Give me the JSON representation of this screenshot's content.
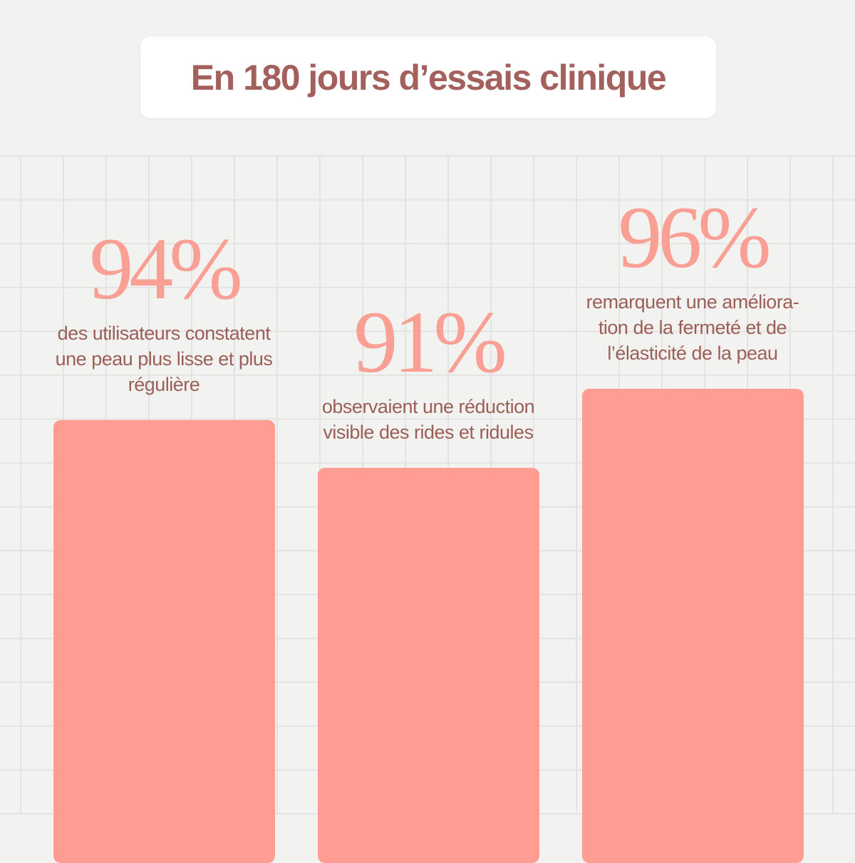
{
  "title": "En 180 jours d’essais clinique",
  "chart_data": {
    "type": "bar",
    "categories": [
      "des utilisateurs constatent une peau plus lisse et plus régulière",
      "observaient une réduction visible des rides et ridules",
      "remarquent une amélioration de la fermeté et de l’élasticité de la peau"
    ],
    "values": [
      94,
      91,
      96
    ],
    "value_labels": [
      "94%",
      "91%",
      "96%"
    ],
    "descriptions": [
      "des utilisateurs constatent\nune peau plus lisse et plus\nrégulière",
      "observaient une réduction\nvisible des rides et ridules",
      "remarquent une améliora-\ntion de la fermeté et de\nl’élasticité de la peau"
    ],
    "colors": {
      "bar": "#ff9d92",
      "value_text": "#fa9f93",
      "text": "#9c5f58",
      "title": "#a3605c"
    },
    "grid": true,
    "ylim": [
      0,
      100
    ]
  }
}
